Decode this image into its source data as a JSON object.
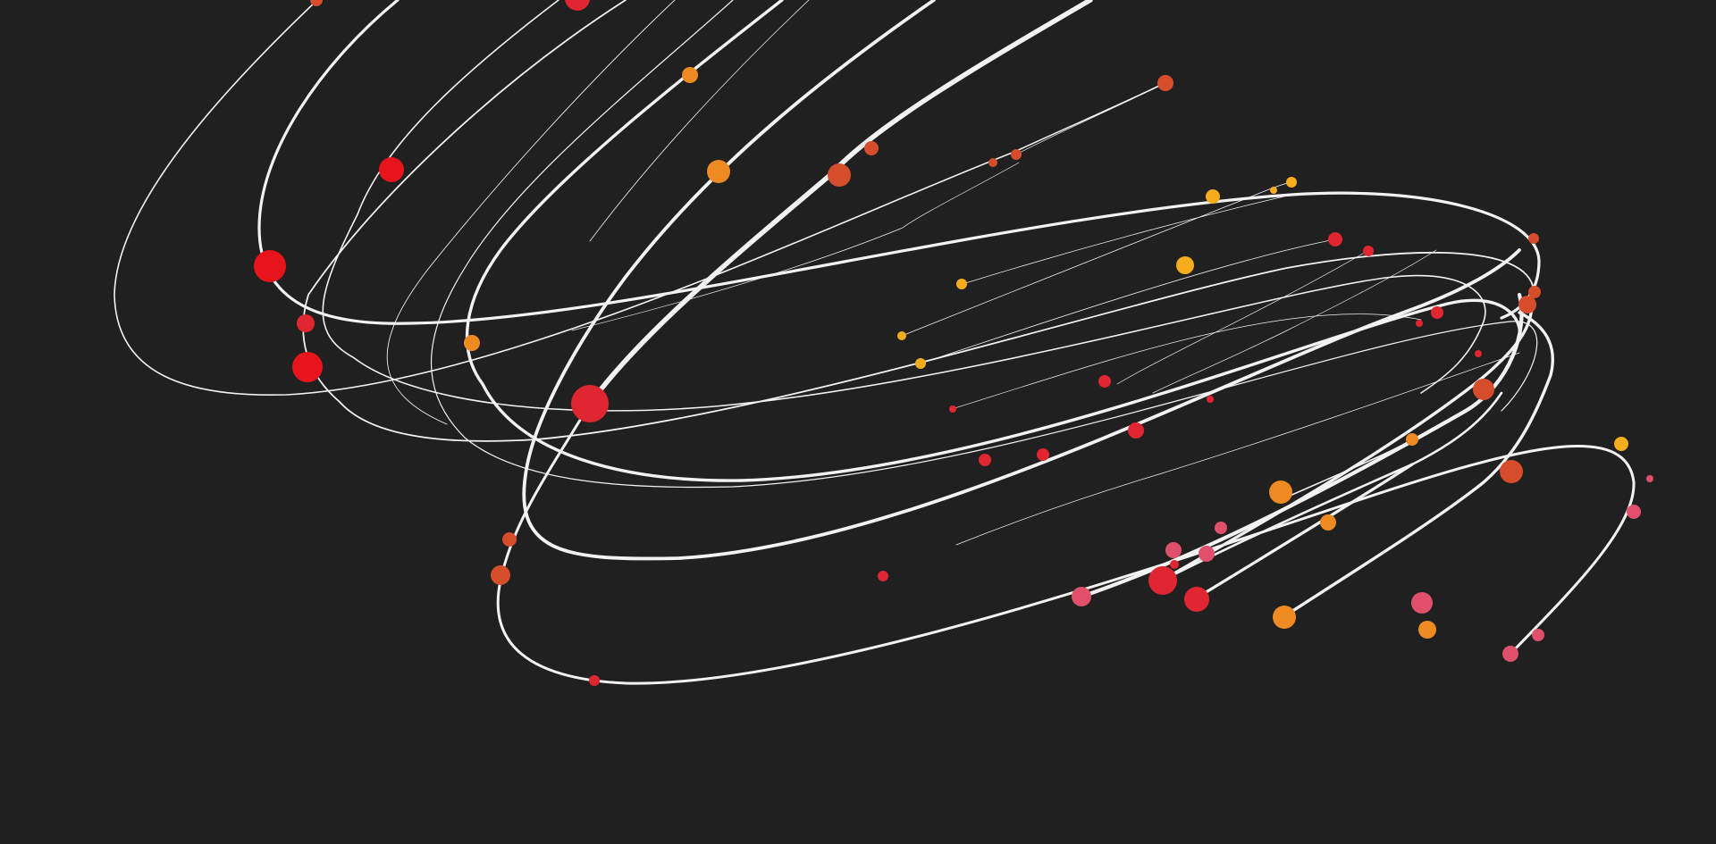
{
  "scene": {
    "background": "#202020",
    "line_color": "#f2f2f2",
    "palette": {
      "red": "#e8141c",
      "crimson": "#e02630",
      "orange_red": "#d64d2c",
      "orange": "#ee8a22",
      "amber": "#f5ad1e",
      "pink": "#e0506a"
    },
    "trail_count": 26,
    "particle_count": 71
  }
}
